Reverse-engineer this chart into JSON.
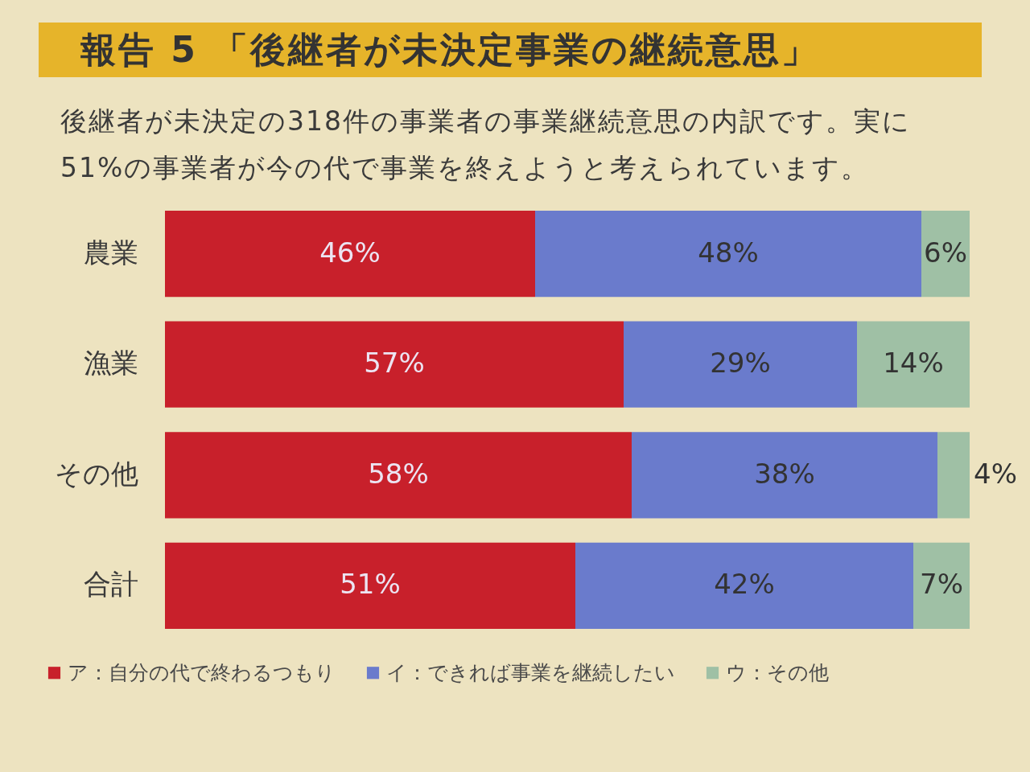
{
  "chart_data": {
    "type": "bar",
    "orientation": "horizontal",
    "stacked": true,
    "title": "報告 5 「後継者が未決定事業の継続意思」",
    "subtitle": "後継者が未決定の318件の事業者の事業継続意思の内訳です。実に51%の事業者が今の代で事業を終えようと考えられています。",
    "categories": [
      "農業",
      "漁業",
      "その他",
      "合計"
    ],
    "series": [
      {
        "name": "ア：自分の代で終わるつもり",
        "color": "#c8202b",
        "values": [
          46,
          57,
          58,
          51
        ],
        "value_labels": [
          "46%",
          "57%",
          "58%",
          "51%"
        ]
      },
      {
        "name": "イ：できれば事業を継続したい",
        "color": "#6a7bcc",
        "values": [
          48,
          29,
          38,
          42
        ],
        "value_labels": [
          "48%",
          "29%",
          "38%",
          "42%"
        ]
      },
      {
        "name": "ウ：その他",
        "color": "#9fc0a5",
        "values": [
          6,
          14,
          4,
          7
        ],
        "value_labels": [
          "6%",
          "14%",
          "4%",
          "7%"
        ]
      }
    ],
    "legend": "bottom",
    "tick_labels": "y"
  }
}
